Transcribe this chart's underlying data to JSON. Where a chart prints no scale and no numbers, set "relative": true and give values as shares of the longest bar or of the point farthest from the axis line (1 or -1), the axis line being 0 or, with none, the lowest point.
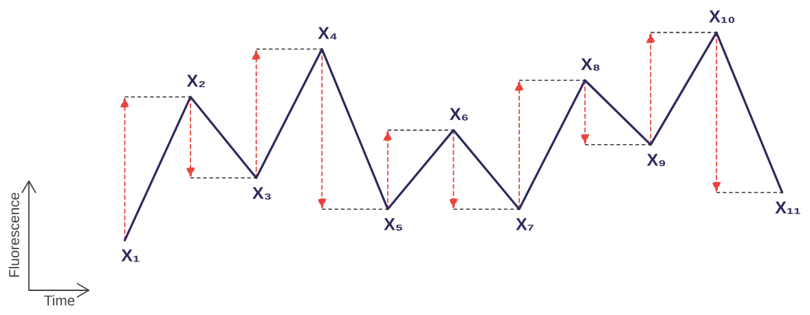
{
  "chart_data": {
    "type": "line",
    "relative": true,
    "xlabel": "Time",
    "annotations": [
      "Fluorescence"
    ],
    "categories": [
      "X₁",
      "X₂",
      "X₃",
      "X₄",
      "X₅",
      "X₆",
      "X₇",
      "X₈",
      "X₉",
      "X₁₀",
      "X₁₁"
    ],
    "series": [
      {
        "color": "#2f2a5c",
        "values": [
          0,
          0.69,
          0.3,
          0.92,
          0.15,
          0.53,
          0.15,
          0.77,
          0.46,
          1,
          0.23
        ]
      }
    ]
  }
}
